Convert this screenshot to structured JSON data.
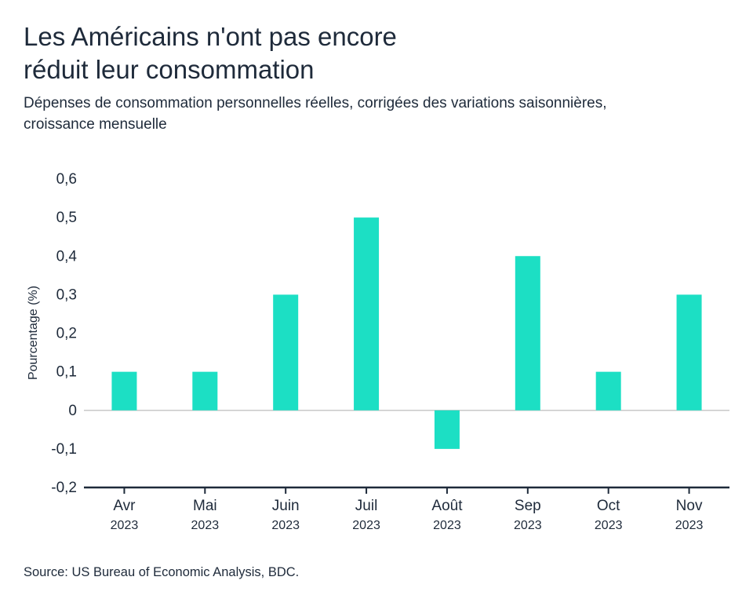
{
  "header": {
    "title_line1": "Les Américains n'ont pas encore",
    "title_line2": "réduit leur consommation",
    "subtitle_line1": "Dépenses de consommation personnelles réelles, corrigées des variations saisonnières,",
    "subtitle_line2": "croissance mensuelle"
  },
  "chart_data": {
    "type": "bar",
    "categories": [
      {
        "month": "Avr",
        "year": "2023"
      },
      {
        "month": "Mai",
        "year": "2023"
      },
      {
        "month": "Juin",
        "year": "2023"
      },
      {
        "month": "Juil",
        "year": "2023"
      },
      {
        "month": "Août",
        "year": "2023"
      },
      {
        "month": "Sep",
        "year": "2023"
      },
      {
        "month": "Oct",
        "year": "2023"
      },
      {
        "month": "Nov",
        "year": "2023"
      }
    ],
    "values": [
      0.1,
      0.1,
      0.3,
      0.5,
      -0.1,
      0.4,
      0.1,
      0.3
    ],
    "ylabel": "Pourcentage (%)",
    "ylim": [
      -0.2,
      0.6
    ],
    "yticks": [
      {
        "value": 0.6,
        "label": "0,6"
      },
      {
        "value": 0.5,
        "label": "0,5"
      },
      {
        "value": 0.4,
        "label": "0,4"
      },
      {
        "value": 0.3,
        "label": "0,3"
      },
      {
        "value": 0.2,
        "label": "0,2"
      },
      {
        "value": 0.1,
        "label": "0,1"
      },
      {
        "value": 0,
        "label": "0"
      },
      {
        "value": -0.1,
        "label": "-0,1"
      },
      {
        "value": -0.2,
        "label": "-0,2"
      }
    ],
    "grid": false,
    "bar_color": "#1cdfc4",
    "axis_color": "#1e2a3a",
    "zero_line_color": "#c8c8c8"
  },
  "footer": {
    "source": "Source: US Bureau of Economic Analysis, BDC."
  }
}
